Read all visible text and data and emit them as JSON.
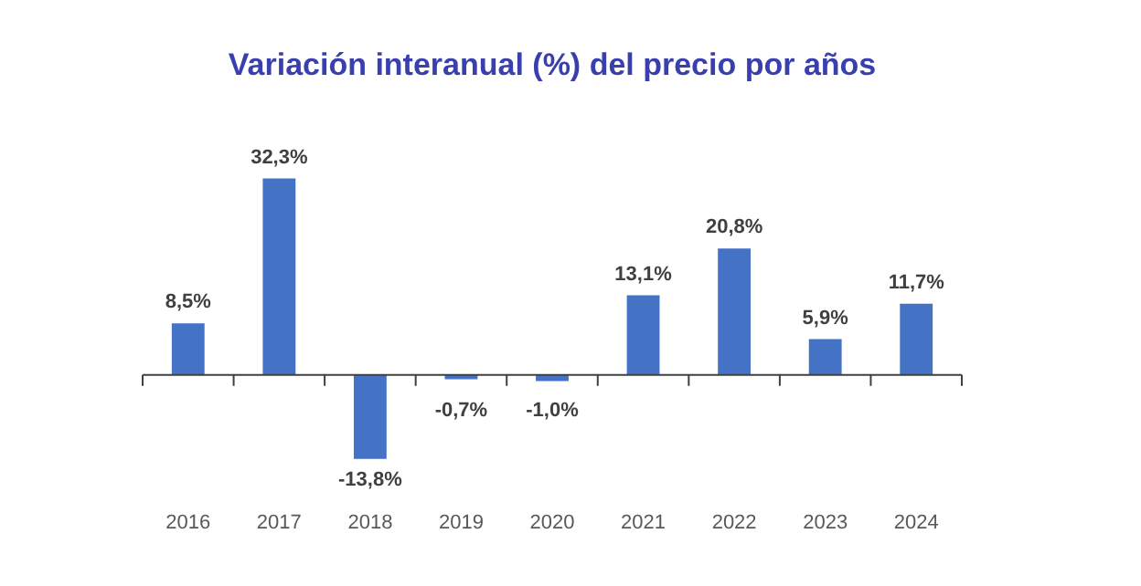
{
  "chart_data": {
    "type": "bar",
    "title": "Variación interanual (%) del precio por años",
    "categories": [
      "2016",
      "2017",
      "2018",
      "2019",
      "2020",
      "2021",
      "2022",
      "2023",
      "2024"
    ],
    "values": [
      8.5,
      32.3,
      -13.8,
      -0.7,
      -1.0,
      13.1,
      20.8,
      5.9,
      11.7
    ],
    "value_labels": [
      "8,5%",
      "32,3%",
      "-13,8%",
      "-0,7%",
      "-1,0%",
      "13,1%",
      "20,8%",
      "5,9%",
      "11,7%"
    ],
    "color": "#4472c4",
    "grid": false,
    "legend": false
  }
}
